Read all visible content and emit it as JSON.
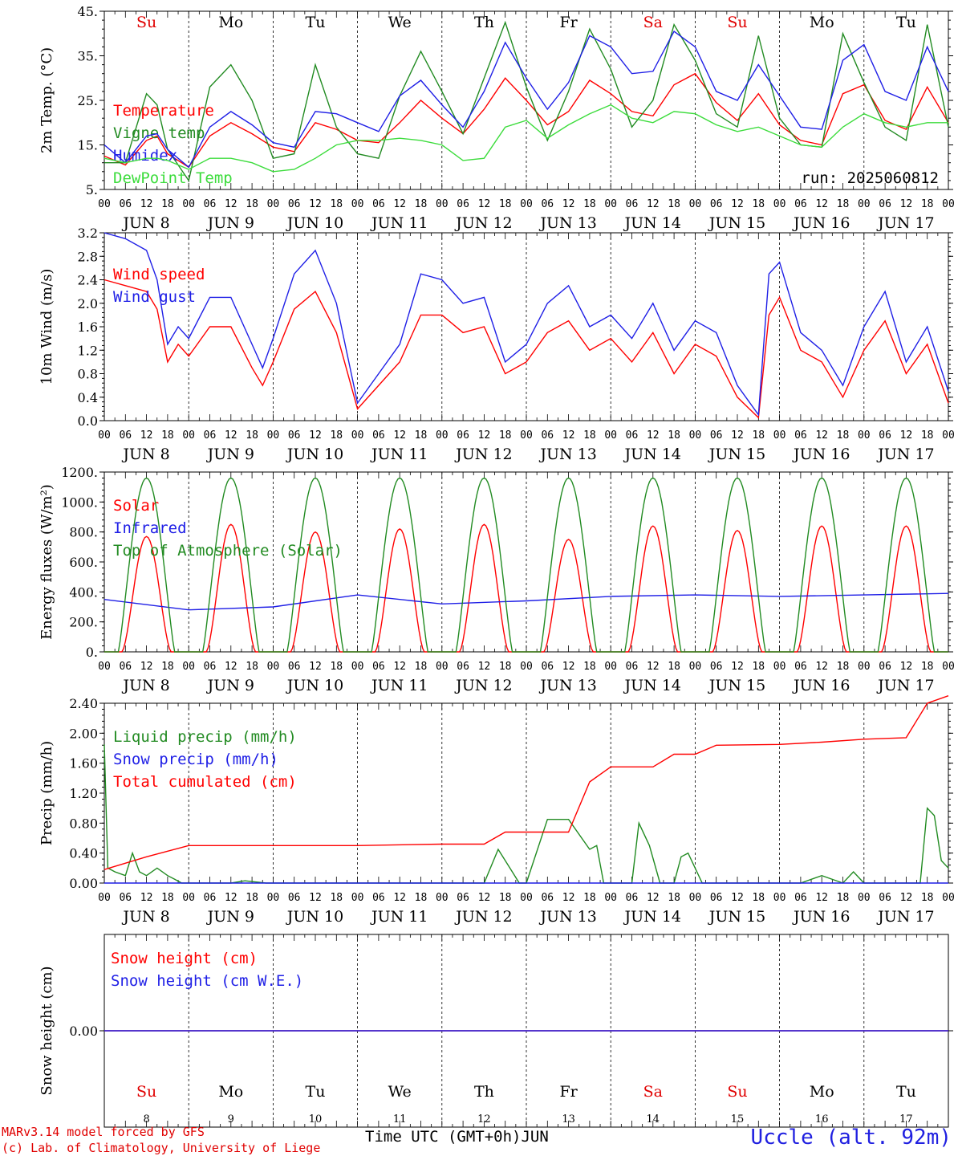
{
  "run_label": "run: 2025060812",
  "footer": {
    "model": "MARv3.14 model forced by GFS",
    "credit": "(c) Lab. of Climatology, University of Liege",
    "xaxis_title": "Time UTC (GMT+0h)",
    "month": "JUN",
    "station": "Uccle (alt. 92m)"
  },
  "days": [
    {
      "weekday": "Su",
      "date": "JUN  8",
      "num": "8",
      "color": "#e00000"
    },
    {
      "weekday": "Mo",
      "date": "JUN  9",
      "num": "9",
      "color": "#000000"
    },
    {
      "weekday": "Tu",
      "date": "JUN 10",
      "num": "10",
      "color": "#000000"
    },
    {
      "weekday": "We",
      "date": "JUN 11",
      "num": "11",
      "color": "#000000"
    },
    {
      "weekday": "Th",
      "date": "JUN 12",
      "num": "12",
      "color": "#000000"
    },
    {
      "weekday": "Fr",
      "date": "JUN 13",
      "num": "13",
      "color": "#000000"
    },
    {
      "weekday": "Sa",
      "date": "JUN 14",
      "num": "14",
      "color": "#e00000"
    },
    {
      "weekday": "Su",
      "date": "JUN 15",
      "num": "15",
      "color": "#e00000"
    },
    {
      "weekday": "Mo",
      "date": "JUN 16",
      "num": "16",
      "color": "#000000"
    },
    {
      "weekday": "Tu",
      "date": "JUN 17",
      "num": "17",
      "color": "#000000"
    }
  ],
  "hour_ticks": [
    "00",
    "06",
    "12",
    "18"
  ],
  "colors": {
    "red": "#ff0000",
    "green": "#228b22",
    "blue": "#1f1fe6",
    "lightgreen": "#3cdc3c"
  },
  "chart_data": [
    {
      "type": "line",
      "ylabel": "2m Temp. (°C)",
      "ylim": [
        5,
        45
      ],
      "yticks": [
        "5.",
        "15.",
        "25.",
        "35.",
        "45."
      ],
      "ytick_values": [
        5,
        15,
        25,
        35,
        45
      ],
      "series": [
        {
          "name": "Temperature",
          "color": "#ff0000",
          "x": [
            0,
            6,
            12,
            15,
            18,
            24,
            30,
            36,
            42,
            48,
            54,
            60,
            66,
            72,
            78,
            84,
            90,
            96,
            102,
            108,
            114,
            120,
            126,
            132,
            138,
            144,
            150,
            156,
            162,
            168,
            174,
            180,
            186,
            192,
            198,
            204,
            210,
            216,
            222,
            228,
            234,
            240
          ],
          "values": [
            12.5,
            10.5,
            16,
            17,
            13,
            10,
            17,
            20,
            17.5,
            14.5,
            13.5,
            20,
            18.5,
            16,
            15.5,
            20,
            25,
            21,
            17.5,
            23,
            30,
            25,
            19.5,
            22.5,
            29.5,
            26.5,
            22.5,
            21.5,
            28.5,
            31,
            24.5,
            20.5,
            26.5,
            19.5,
            16,
            15,
            26.5,
            28.5,
            20.5,
            18.5,
            28,
            20
          ]
        },
        {
          "name": "Vigne temp",
          "color": "#228b22",
          "x": [
            0,
            6,
            12,
            15,
            18,
            24,
            30,
            36,
            42,
            48,
            54,
            60,
            66,
            72,
            78,
            84,
            90,
            96,
            102,
            108,
            114,
            120,
            126,
            132,
            138,
            144,
            150,
            156,
            162,
            168,
            174,
            180,
            186,
            192,
            198,
            204,
            210,
            216,
            222,
            228,
            234,
            240
          ],
          "values": [
            11,
            11,
            26.5,
            24,
            14,
            7,
            28,
            33,
            25,
            12,
            13,
            33,
            19,
            13,
            12,
            26,
            36,
            27,
            17.5,
            30,
            42.5,
            28,
            16,
            27,
            41,
            32,
            19,
            25,
            42,
            34,
            22,
            19,
            39.5,
            21,
            15,
            14.5,
            40,
            29,
            19,
            16,
            42,
            19
          ]
        },
        {
          "name": "Humidex",
          "color": "#1f1fe6",
          "x": [
            0,
            6,
            12,
            15,
            18,
            24,
            30,
            36,
            42,
            48,
            54,
            60,
            66,
            72,
            78,
            84,
            90,
            96,
            102,
            108,
            114,
            120,
            126,
            132,
            138,
            144,
            150,
            156,
            162,
            168,
            174,
            180,
            186,
            192,
            198,
            204,
            210,
            216,
            222,
            228,
            234,
            240
          ],
          "values": [
            15,
            11,
            17,
            17.5,
            14,
            10,
            19,
            22.5,
            19.5,
            15.5,
            14.5,
            22.5,
            22,
            20,
            18,
            26,
            29.5,
            24,
            19,
            27,
            38,
            30,
            23,
            29,
            39.5,
            37,
            31,
            31.5,
            40.5,
            37,
            27,
            25,
            33,
            26,
            19,
            18.5,
            34,
            37.5,
            27,
            25,
            37,
            27
          ]
        },
        {
          "name": "DewPoint Temp",
          "color": "#3cdc3c",
          "x": [
            0,
            6,
            12,
            15,
            18,
            24,
            30,
            36,
            42,
            48,
            54,
            60,
            66,
            72,
            78,
            84,
            90,
            96,
            102,
            108,
            114,
            120,
            126,
            132,
            138,
            144,
            150,
            156,
            162,
            168,
            174,
            180,
            186,
            192,
            198,
            204,
            210,
            216,
            222,
            228,
            234,
            240
          ],
          "values": [
            12,
            11,
            12,
            12,
            11.5,
            9.5,
            12,
            12,
            11,
            9,
            9.5,
            12,
            15,
            16,
            16,
            16.5,
            16,
            15,
            11.5,
            12,
            19,
            20.5,
            16.5,
            19.5,
            22,
            24,
            21,
            20,
            22.5,
            22,
            19.5,
            18,
            19,
            17,
            15,
            14.5,
            19,
            22,
            20,
            19,
            20,
            20
          ]
        }
      ]
    },
    {
      "type": "line",
      "ylabel": "10m Wind (m/s)",
      "ylim": [
        0,
        3.2
      ],
      "yticks": [
        "0.0",
        "0.4",
        "0.8",
        "1.2",
        "1.6",
        "2.0",
        "2.4",
        "2.8",
        "3.2"
      ],
      "ytick_values": [
        0,
        0.4,
        0.8,
        1.2,
        1.6,
        2.0,
        2.4,
        2.8,
        3.2
      ],
      "series": [
        {
          "name": "Wind speed",
          "color": "#ff0000",
          "x": [
            0,
            6,
            12,
            15,
            18,
            21,
            24,
            30,
            36,
            42,
            45,
            48,
            54,
            60,
            66,
            72,
            78,
            84,
            90,
            96,
            102,
            108,
            114,
            120,
            126,
            132,
            138,
            144,
            150,
            156,
            162,
            168,
            174,
            180,
            186,
            189,
            192,
            198,
            204,
            210,
            216,
            222,
            228,
            234,
            240
          ],
          "values": [
            2.4,
            2.3,
            2.2,
            1.9,
            1.0,
            1.3,
            1.1,
            1.6,
            1.6,
            0.9,
            0.6,
            1.0,
            1.9,
            2.2,
            1.5,
            0.2,
            0.6,
            1.0,
            1.8,
            1.8,
            1.5,
            1.6,
            0.8,
            1.0,
            1.5,
            1.7,
            1.2,
            1.4,
            1.0,
            1.5,
            0.8,
            1.3,
            1.1,
            0.4,
            0.05,
            1.8,
            2.1,
            1.2,
            1.0,
            0.4,
            1.2,
            1.7,
            0.8,
            1.3,
            0.3
          ]
        },
        {
          "name": "Wind gust",
          "color": "#1f1fe6",
          "x": [
            0,
            6,
            12,
            15,
            18,
            21,
            24,
            30,
            36,
            42,
            45,
            48,
            54,
            60,
            66,
            72,
            78,
            84,
            90,
            96,
            102,
            108,
            114,
            120,
            126,
            132,
            138,
            144,
            150,
            156,
            162,
            168,
            174,
            180,
            186,
            189,
            192,
            198,
            204,
            210,
            216,
            222,
            228,
            234,
            240
          ],
          "values": [
            3.2,
            3.1,
            2.9,
            2.4,
            1.3,
            1.6,
            1.4,
            2.1,
            2.1,
            1.3,
            0.9,
            1.4,
            2.5,
            2.9,
            2.0,
            0.3,
            0.8,
            1.3,
            2.5,
            2.4,
            2.0,
            2.1,
            1.0,
            1.3,
            2.0,
            2.3,
            1.6,
            1.8,
            1.4,
            2.0,
            1.2,
            1.7,
            1.5,
            0.6,
            0.1,
            2.5,
            2.7,
            1.5,
            1.2,
            0.6,
            1.6,
            2.2,
            1.0,
            1.6,
            0.5
          ]
        }
      ]
    },
    {
      "type": "line",
      "ylabel": "Energy fluxes (W/m²)",
      "ylim": [
        0,
        1200
      ],
      "yticks": [
        "0.",
        "200.",
        "400.",
        "600.",
        "800.",
        "1000.",
        "1200."
      ],
      "ytick_values": [
        0,
        200,
        400,
        600,
        800,
        1000,
        1200
      ],
      "series": [
        {
          "name": "Solar",
          "color": "#ff0000",
          "daily_peak": [
            770,
            850,
            800,
            820,
            850,
            750,
            840,
            810,
            840,
            840
          ]
        },
        {
          "name": "Infrared",
          "color": "#1f1fe6",
          "x": [
            0,
            24,
            48,
            72,
            96,
            120,
            144,
            168,
            192,
            216,
            240
          ],
          "values": [
            350,
            280,
            300,
            380,
            320,
            340,
            370,
            380,
            370,
            380,
            390
          ]
        },
        {
          "name": "Top of Atmosphere (Solar)",
          "color": "#228b22",
          "daily_peak": [
            1160,
            1160,
            1160,
            1160,
            1160,
            1160,
            1160,
            1160,
            1160,
            1160
          ]
        }
      ]
    },
    {
      "type": "line",
      "ylabel": "Precip (mm/h)",
      "ylim": [
        0,
        2.4
      ],
      "yticks": [
        "0.00",
        "0.40",
        "0.80",
        "1.20",
        "1.60",
        "2.00",
        "2.40"
      ],
      "ytick_values": [
        0,
        0.4,
        0.8,
        1.2,
        1.6,
        2.0,
        2.4
      ],
      "series": [
        {
          "name": "Liquid precip (mm/h)",
          "color": "#228b22",
          "x": [
            0,
            1,
            3,
            6,
            8,
            10,
            12,
            15,
            18,
            20,
            22,
            24,
            30,
            36,
            40,
            46,
            60,
            72,
            84,
            96,
            108,
            112,
            114,
            118,
            120,
            126,
            132,
            138,
            140,
            142,
            144,
            148,
            150,
            152,
            155,
            158,
            162,
            164,
            166,
            170,
            174,
            180,
            186,
            192,
            198,
            204,
            210,
            213,
            216,
            222,
            228,
            232,
            234,
            236,
            238,
            240
          ],
          "values": [
            1.85,
            0.2,
            0.15,
            0.1,
            0.4,
            0.15,
            0.1,
            0.2,
            0.1,
            0.05,
            0,
            0,
            0,
            0,
            0.03,
            0,
            0,
            0,
            0,
            0,
            0,
            0.45,
            0.3,
            0,
            0,
            0.85,
            0.85,
            0.45,
            0.5,
            0,
            0,
            0,
            0,
            0.8,
            0.5,
            0,
            0,
            0.35,
            0.4,
            0,
            0,
            0,
            0,
            0,
            0,
            0.1,
            0,
            0.15,
            0,
            0,
            0,
            0,
            1.0,
            0.9,
            0.3,
            0.2
          ]
        },
        {
          "name": "Snow precip (mm/h)",
          "color": "#1f1fe6",
          "x": [
            0,
            240
          ],
          "values": [
            0,
            0
          ]
        },
        {
          "name": "Total cumulated (cm)",
          "color": "#ff0000",
          "x": [
            0,
            12,
            24,
            48,
            72,
            96,
            108,
            114,
            120,
            132,
            138,
            144,
            150,
            156,
            162,
            168,
            174,
            192,
            204,
            216,
            228,
            234,
            240
          ],
          "values": [
            0.18,
            0.35,
            0.5,
            0.5,
            0.5,
            0.52,
            0.52,
            0.68,
            0.68,
            0.68,
            1.35,
            1.55,
            1.55,
            1.55,
            1.72,
            1.72,
            1.84,
            1.85,
            1.88,
            1.92,
            1.94,
            2.4,
            2.5
          ]
        }
      ]
    },
    {
      "type": "line",
      "ylabel": "Snow height (cm)",
      "ylim": [
        -1,
        1
      ],
      "yticks": [
        "0.00"
      ],
      "ytick_values": [
        0
      ],
      "series": [
        {
          "name": "Snow height (cm)",
          "color": "#ff0000",
          "x": [
            0,
            240
          ],
          "values": [
            0,
            0
          ]
        },
        {
          "name": "Snow height (cm W.E.)",
          "color": "#1f1fe6",
          "x": [
            0,
            240
          ],
          "values": [
            0,
            0
          ]
        }
      ]
    }
  ]
}
